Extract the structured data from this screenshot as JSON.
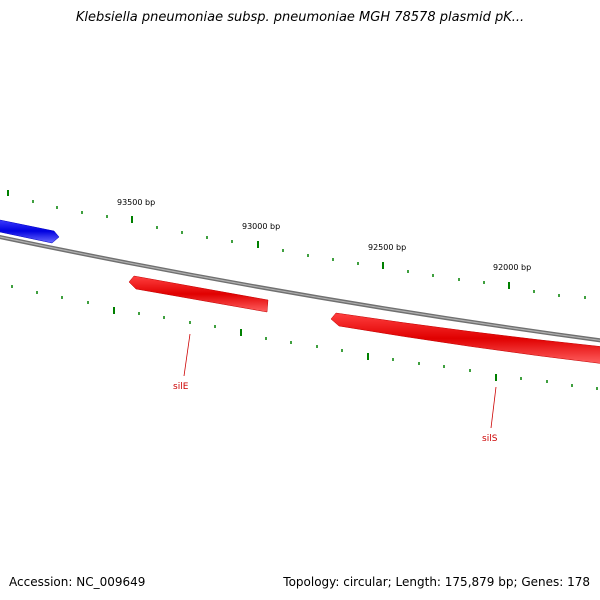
{
  "title": "Klebsiella pneumoniae subsp. pneumoniae MGH 78578 plasmid pK...",
  "ruler_labels": [
    "93500 bp",
    "93000 bp",
    "92500 bp",
    "92000 bp"
  ],
  "genes": [
    {
      "name": "silE",
      "strand": "reverse",
      "color": "#ff0000"
    },
    {
      "name": "silS",
      "strand": "reverse",
      "color": "#ff0000"
    },
    {
      "name": "",
      "strand": "forward",
      "color": "#0000ff"
    }
  ],
  "colors": {
    "backbone": "#808080",
    "ticks": "#008000",
    "reverse_gene": "#ff0000",
    "forward_gene": "#0000ff",
    "gene_label": "#cc0000"
  },
  "footer": {
    "accession": "Accession: NC_009649",
    "summary": "Topology: circular; Length: 175,879 bp; Genes: 178"
  }
}
